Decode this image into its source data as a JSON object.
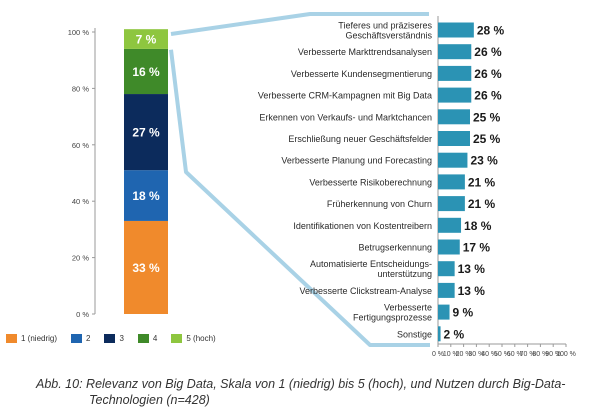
{
  "chart_data": [
    {
      "type": "bar",
      "stacked": true,
      "title": "Relevanz von Big Data",
      "ylim": [
        0,
        100
      ],
      "yticks": [
        "0 %",
        "20 %",
        "40 %",
        "60 %",
        "80 %",
        "100 %"
      ],
      "series": [
        {
          "name": "1 (niedrig)",
          "label": "33 %",
          "value": 33,
          "color": "#f08a2c"
        },
        {
          "name": "2",
          "label": "18 %",
          "value": 18,
          "color": "#1f65b0"
        },
        {
          "name": "3",
          "label": "27 %",
          "value": 27,
          "color": "#0c2b5c"
        },
        {
          "name": "4",
          "label": "16 %",
          "value": 16,
          "color": "#3f8a29"
        },
        {
          "name": "5 (hoch)",
          "label": "7 %",
          "value": 7,
          "color": "#8ec63f"
        }
      ]
    },
    {
      "type": "bar",
      "orientation": "horizontal",
      "title": "Nutzen durch Big-Data-Technologien",
      "xlim": [
        0,
        100
      ],
      "xticks": [
        "0 %",
        "10 %",
        "20 %",
        "30 %",
        "40 %",
        "50 %",
        "60 %",
        "70 %",
        "80 %",
        "90 %",
        "100 %"
      ],
      "bar_color": "#2b93b4",
      "categories": [
        [
          "Tieferes und präziseres",
          "Geschäftsverständnis"
        ],
        [
          "Verbesserte Markttrendsanalysen"
        ],
        [
          "Verbesserte Kundensegmentierung"
        ],
        [
          "Verbesserte CRM-Kampagnen mit Big Data"
        ],
        [
          "Erkennen von Verkaufs- und Marktchancen"
        ],
        [
          "Erschließung neuer Geschäftsfelder"
        ],
        [
          "Verbesserte Planung und Forecasting"
        ],
        [
          "Verbesserte Risikoberechnung"
        ],
        [
          "Früherkennung von Churn"
        ],
        [
          "Identifikationen von Kostentreibern"
        ],
        [
          "Betrugserkennung"
        ],
        [
          "Automatisierte Entscheidungs-",
          "unterstützung"
        ],
        [
          "Verbesserte Clickstream-Analyse"
        ],
        [
          "Verbesserte",
          "Fertigungsprozesse"
        ],
        [
          "Sonstige"
        ]
      ],
      "values": [
        28,
        26,
        26,
        26,
        25,
        25,
        23,
        21,
        21,
        18,
        17,
        13,
        13,
        9,
        2
      ],
      "value_labels": [
        "28 %",
        "26 %",
        "26 %",
        "26 %",
        "25 %",
        "25 %",
        "23 %",
        "21 %",
        "21 %",
        "18 %",
        "17 %",
        "13 %",
        "13 %",
        "9 %",
        "2 %"
      ]
    }
  ],
  "caption": {
    "line1": "Abb. 10: Relevanz von Big Data, Skala von 1 (niedrig) bis 5 (hoch), und Nutzen durch Big-Data-",
    "line2": "Technologien (n=428)"
  },
  "colors": {
    "connector": "#a9d2e6",
    "axis": "#9a9a9a"
  }
}
